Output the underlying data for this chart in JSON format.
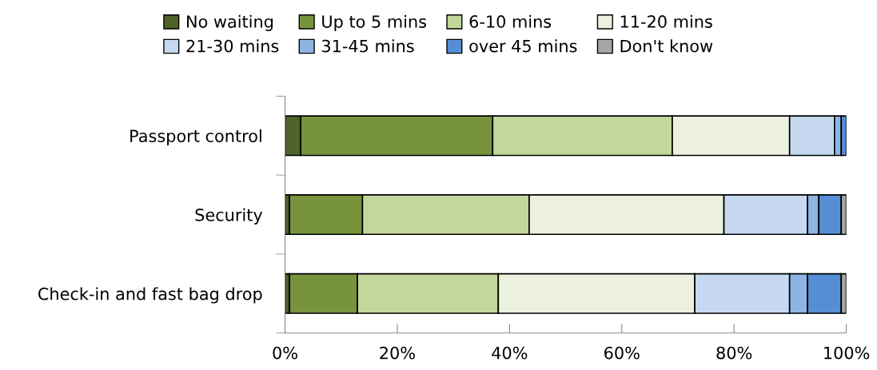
{
  "chart_data": {
    "type": "bar",
    "orientation": "horizontal",
    "stacked": true,
    "categories": [
      "Passport control",
      "Security",
      "Check-in and fast bag drop"
    ],
    "series": [
      {
        "name": "No waiting",
        "color": "#4f6228",
        "values": [
          2.8,
          0.8,
          0.8
        ]
      },
      {
        "name": "Up to 5 mins",
        "color": "#77933c",
        "values": [
          34.2,
          13,
          12.1
        ]
      },
      {
        "name": "6-10 mins",
        "color": "#c3d69b",
        "values": [
          32,
          29.7,
          25.1
        ]
      },
      {
        "name": "11-20 mins",
        "color": "#ebf1de",
        "values": [
          20.9,
          34.7,
          35
        ]
      },
      {
        "name": "21-30 mins",
        "color": "#c6d9f1",
        "values": [
          8,
          14.9,
          16.9
        ]
      },
      {
        "name": "31-45 mins",
        "color": "#8eb4e3",
        "values": [
          1.2,
          2,
          3.2
        ]
      },
      {
        "name": "over 45 mins",
        "color": "#558ed5",
        "values": [
          0.9,
          4,
          6
        ]
      },
      {
        "name": "Don't know",
        "color": "#a6a6a6",
        "values": [
          null,
          0.9,
          0.9
        ]
      }
    ],
    "xlim": [
      0,
      100
    ],
    "xticks": [
      {
        "value": 0,
        "label": "0%"
      },
      {
        "value": 20,
        "label": "20%"
      },
      {
        "value": 40,
        "label": "40%"
      },
      {
        "value": 60,
        "label": "60%"
      },
      {
        "value": 80,
        "label": "80%"
      },
      {
        "value": 100,
        "label": "100%"
      }
    ],
    "grid": false,
    "legend": "top"
  }
}
